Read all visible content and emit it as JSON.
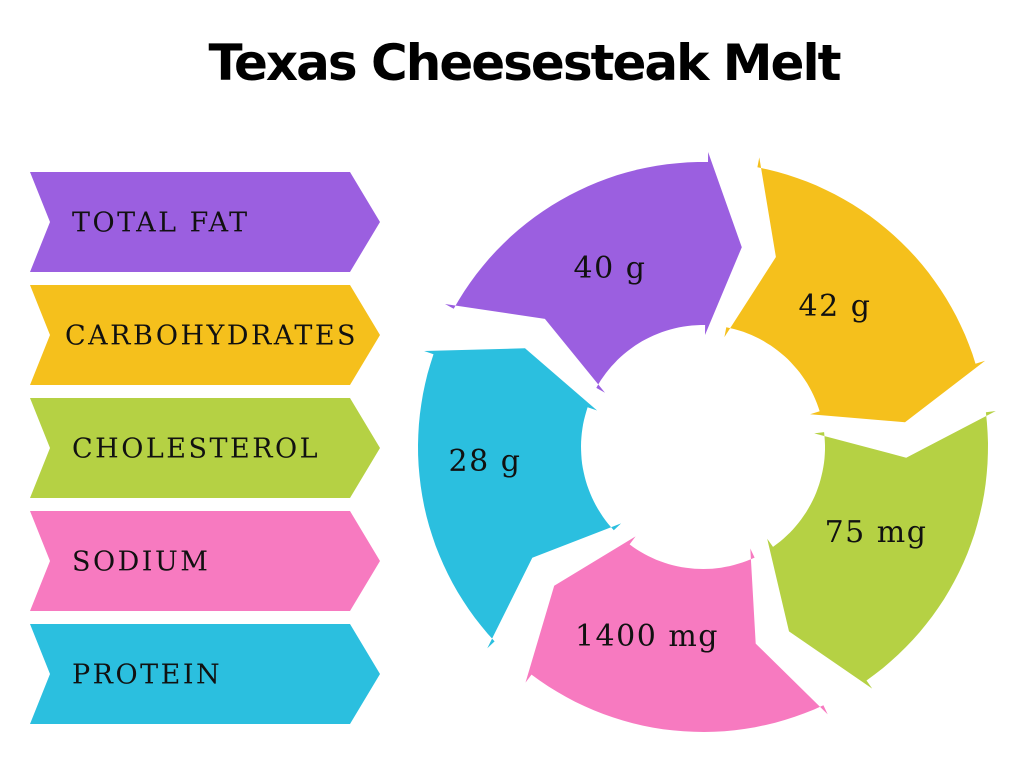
{
  "title": "Texas Cheesesteak Melt",
  "items": [
    {
      "label": "TOTAL FAT",
      "amount": "40 g",
      "color": "#9b5fe0"
    },
    {
      "label": "CARBOHYDRATES",
      "amount": "42 g",
      "color": "#f5c01c"
    },
    {
      "label": "CHOLESTEROL",
      "amount": "75 mg",
      "color": "#b5d144"
    },
    {
      "label": "SODIUM",
      "amount": "1400 mg",
      "color": "#f77ac0"
    },
    {
      "label": "PROTEIN",
      "amount": "28 g",
      "color": "#2bbfdf"
    }
  ]
}
